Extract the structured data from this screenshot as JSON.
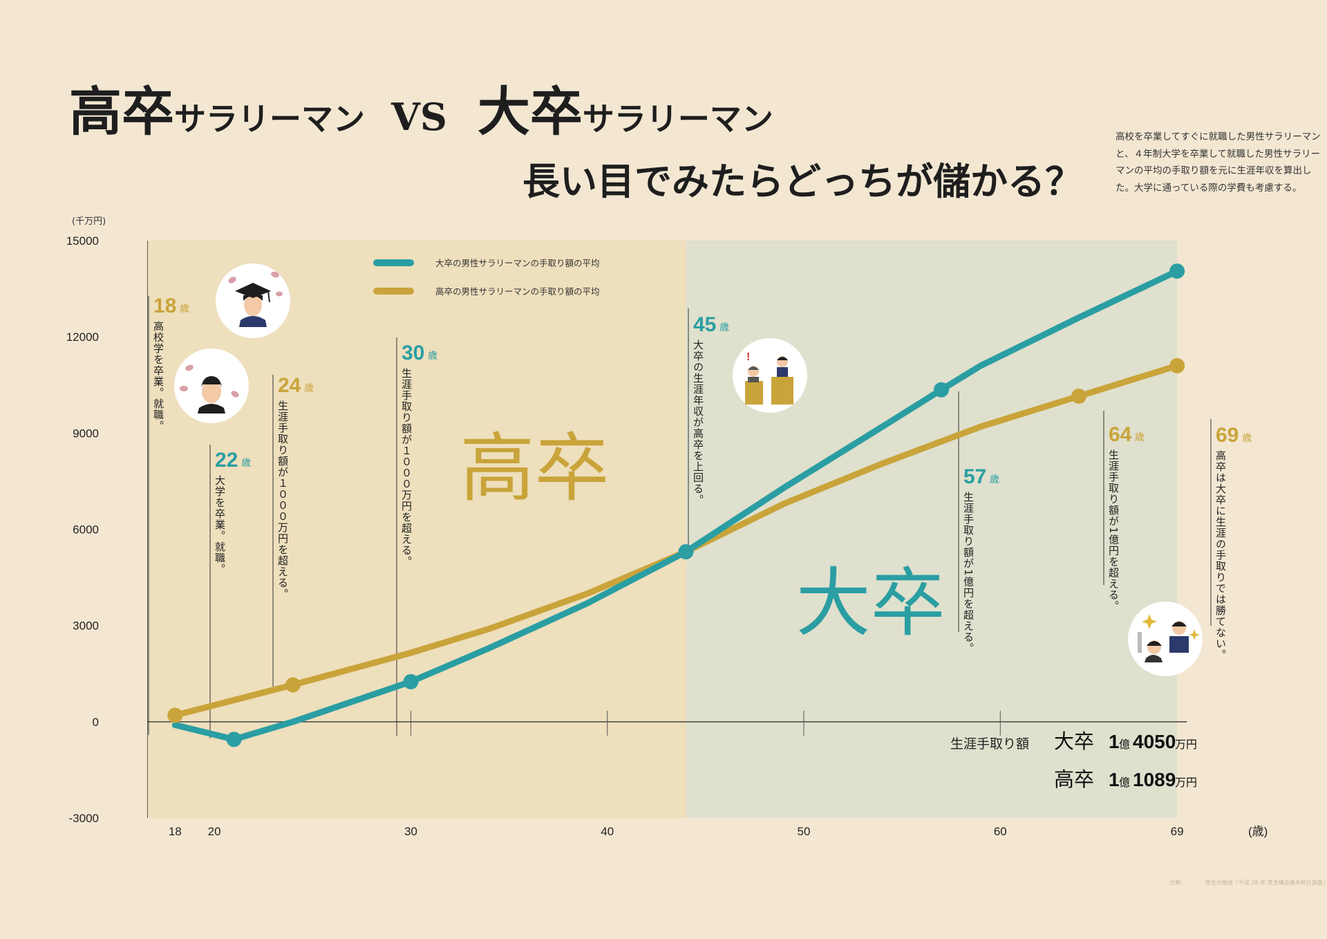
{
  "title": {
    "part1_big": "高卒",
    "part1_small": "サラリーマン",
    "vs": "VS",
    "part2_big": "大卒",
    "part2_small": "サラリーマン",
    "subtitle": "長い目でみたらどっちが儲かる？"
  },
  "description": "高校を卒業してすぐに就職した男性サラリーマンと、４年制大学を卒業して就職した男性サラリーマンの平均の手取り額を元に生涯年収を算出した。大学に通っている際の学費も考慮する。",
  "source": "出典：　　　　厚生労働省「平成 28 年 賃金構造基本統計調査」",
  "colors": {
    "university": "#2a9ea3",
    "highschool": "#c9a43a",
    "highschool_zone": "#eedfbd",
    "university_zone": "#dfe0cd",
    "background": "#f3e7d2"
  },
  "chart_data": {
    "type": "line",
    "y_unit": "(千万円)",
    "x_unit": "(歳)",
    "xlim": [
      15,
      71
    ],
    "ylim": [
      -3000,
      15000
    ],
    "x_ticks": [
      18,
      20,
      30,
      40,
      50,
      60,
      69
    ],
    "y_ticks": [
      15000,
      12000,
      9000,
      6000,
      3000,
      0,
      -3000
    ],
    "series": [
      {
        "name": "大卒の男性サラリーマンの手取り額の平均",
        "color": "#2a9ea3",
        "x": [
          18,
          21,
          24,
          30,
          34,
          39,
          44,
          49,
          54,
          57,
          59,
          64,
          69
        ],
        "y": [
          -100,
          -550,
          0,
          1250,
          2300,
          3700,
          5300,
          7300,
          9200,
          10350,
          11100,
          12600,
          14050
        ],
        "markers_x": [
          21,
          30,
          44,
          57,
          69
        ]
      },
      {
        "name": "高卒の男性サラリーマンの手取り額の平均",
        "color": "#c9a43a",
        "x": [
          18,
          24,
          30,
          34,
          39,
          44,
          49,
          54,
          59,
          64,
          69
        ],
        "y": [
          200,
          1150,
          2150,
          2900,
          4000,
          5300,
          6800,
          8050,
          9200,
          10150,
          11100
        ],
        "markers_x": [
          18,
          24,
          44,
          64,
          69
        ]
      }
    ],
    "zone_labels": [
      "高卒",
      "大卒"
    ],
    "annotations": [
      {
        "age": "18",
        "unit": "歳",
        "text": "高校学を卒業。就職。",
        "color": "#c9a43a"
      },
      {
        "age": "22",
        "unit": "歳",
        "text": "大学を卒業。就職。",
        "color": "#2a9ea3"
      },
      {
        "age": "24",
        "unit": "歳",
        "text": "生涯手取り額が１０００万円を超える。",
        "color": "#c9a43a"
      },
      {
        "age": "30",
        "unit": "歳",
        "text": "生涯手取り額が１０００万円を超える。",
        "color": "#2a9ea3"
      },
      {
        "age": "45",
        "unit": "歳",
        "text": "大卒の生涯年収が高卒を上回る。",
        "color": "#2a9ea3"
      },
      {
        "age": "57",
        "unit": "歳",
        "text": "生涯手取り額が1億円を超える。",
        "color": "#2a9ea3"
      },
      {
        "age": "64",
        "unit": "歳",
        "text": "生涯手取り額が1億円を超える。",
        "color": "#c9a43a"
      },
      {
        "age": "69",
        "unit": "歳",
        "text": "高卒は大卒に生涯の手取りでは勝てない。",
        "color": "#c9a43a"
      }
    ],
    "summary": {
      "label": "生涯手取り額",
      "university": {
        "school": "大卒",
        "oku": "1",
        "oku_unit": "億",
        "man": "4050",
        "man_unit": "万円"
      },
      "highschool": {
        "school": "高卒",
        "oku": "1",
        "oku_unit": "億",
        "man": "1089",
        "man_unit": "万円"
      }
    }
  },
  "icons": [
    "graduate-icon",
    "student-icon",
    "interview-icon",
    "success-icon"
  ]
}
